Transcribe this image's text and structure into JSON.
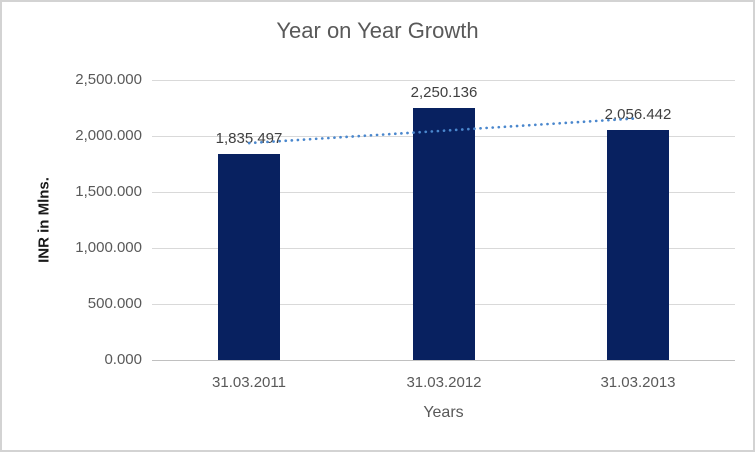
{
  "chart_data": {
    "type": "bar",
    "title": "Year on Year Growth",
    "ylabel": "INR in Mlns.",
    "xlabel": "Years",
    "categories": [
      "31.03.2011",
      "31.03.2012",
      "31.03.2013"
    ],
    "values": [
      1835.497,
      2250.136,
      2056.442
    ],
    "data_labels": [
      "1,835.497",
      "2,250.136",
      "2,056.442"
    ],
    "ytick_values": [
      0,
      500,
      1000,
      1500,
      2000,
      2500
    ],
    "ytick_labels": [
      "0.000",
      "500.000",
      "1,000.000",
      "1,500.000",
      "2,000.000",
      "2,500.000"
    ],
    "ylim": [
      0,
      2500
    ],
    "grid": true,
    "legend": "none",
    "trendline": {
      "type": "linear",
      "style": "dotted"
    },
    "colors": {
      "bar": "#082160",
      "trendline": "#4a87cd",
      "title_text": "#595959",
      "axis_text": "#595959",
      "data_label_text": "#404040",
      "gridline": "#d9d9d9",
      "axis_line": "#c0c0c0",
      "border": "#d3d3d3",
      "background": "#ffffff"
    }
  }
}
